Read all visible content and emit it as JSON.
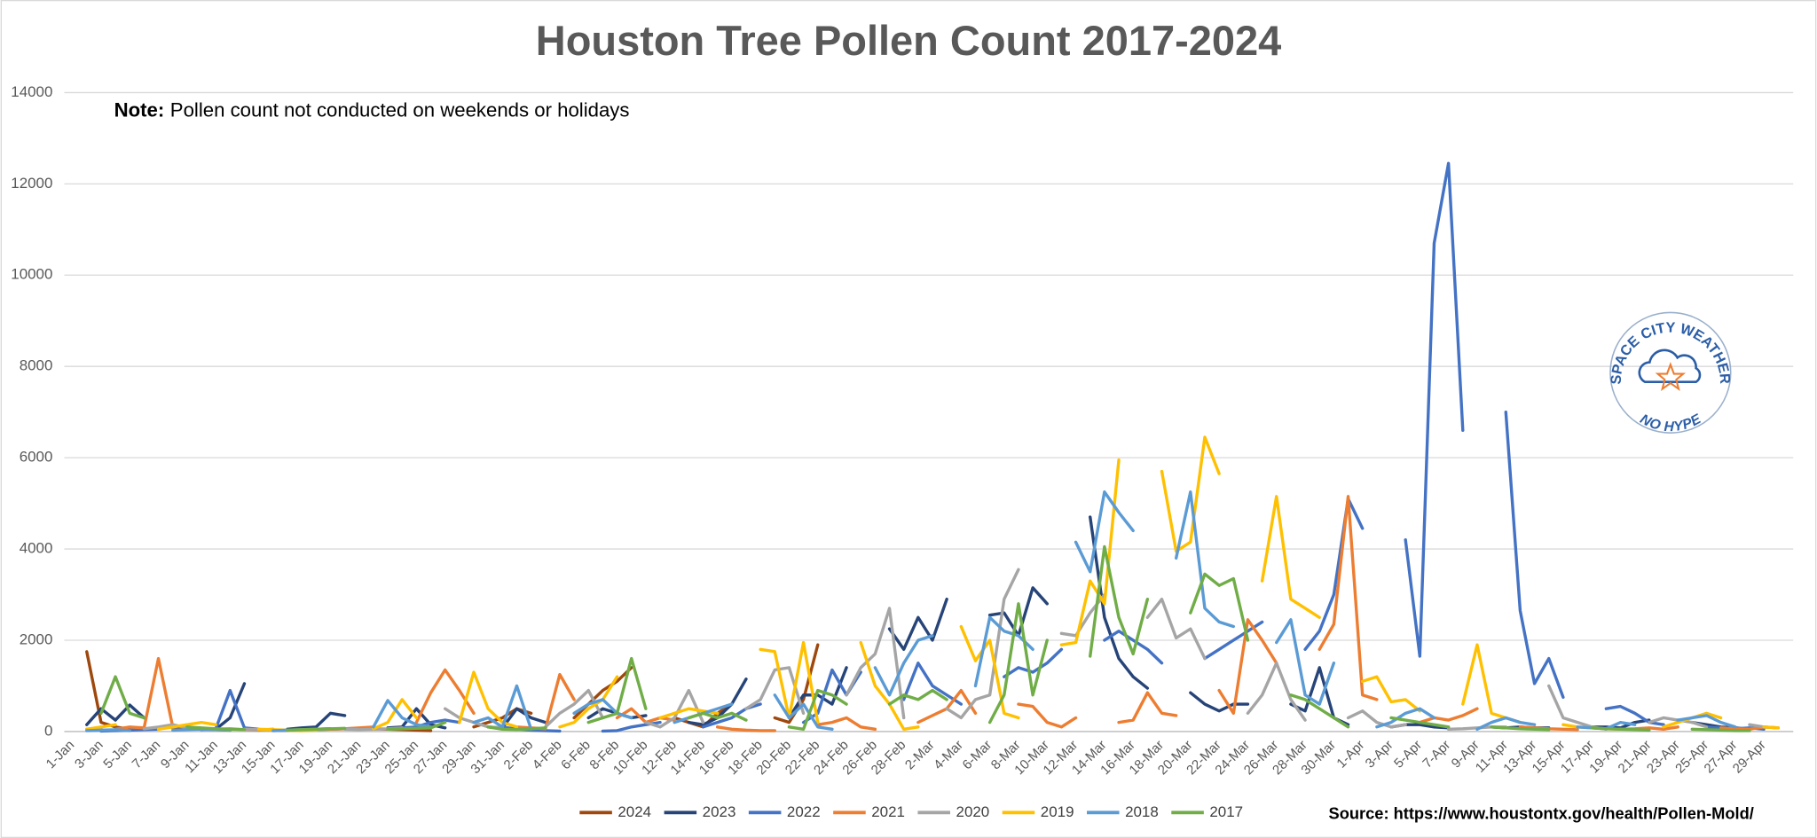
{
  "chart_data": {
    "type": "line",
    "title": "Houston Tree Pollen Count 2017-2024",
    "note": {
      "label": "Note:",
      "text": "Pollen count not conducted on weekends or holidays"
    },
    "source": "Source: https://www.houstontx.gov/health/Pollen-Mold/",
    "logo": {
      "top": "SPACE CITY WEATHER",
      "bottom": "NO HYPE"
    },
    "ylim": [
      0,
      14000
    ],
    "yticks": [
      0,
      2000,
      4000,
      6000,
      8000,
      10000,
      12000,
      14000
    ],
    "grid": true,
    "legend": "bottom",
    "categories": [
      "1-Jan",
      null,
      "3-Jan",
      null,
      "5-Jan",
      null,
      "7-Jan",
      null,
      "9-Jan",
      null,
      "11-Jan",
      null,
      "13-Jan",
      null,
      "15-Jan",
      null,
      "17-Jan",
      null,
      "19-Jan",
      null,
      "21-Jan",
      null,
      "23-Jan",
      null,
      "25-Jan",
      null,
      "27-Jan",
      null,
      "29-Jan",
      null,
      "31-Jan",
      null,
      "2-Feb",
      null,
      "4-Feb",
      null,
      "6-Feb",
      null,
      "8-Feb",
      null,
      "10-Feb",
      null,
      "12-Feb",
      null,
      "14-Feb",
      null,
      "16-Feb",
      null,
      "18-Feb",
      null,
      "20-Feb",
      null,
      "22-Feb",
      null,
      "24-Feb",
      null,
      "26-Feb",
      null,
      "28-Feb",
      null,
      "2-Mar",
      null,
      "4-Mar",
      null,
      "6-Mar",
      null,
      "8-Mar",
      null,
      "10-Mar",
      null,
      "12-Mar",
      null,
      "14-Mar",
      null,
      "16-Mar",
      null,
      "18-Mar",
      null,
      "20-Mar",
      null,
      "22-Mar",
      null,
      "24-Mar",
      null,
      "26-Mar",
      null,
      "28-Mar",
      null,
      "30-Mar",
      null,
      "1-Apr",
      null,
      "3-Apr",
      null,
      "5-Apr",
      null,
      "7-Apr",
      null,
      "9-Apr",
      null,
      "11-Apr",
      null,
      "13-Apr",
      null,
      "15-Apr",
      null,
      "17-Apr",
      null,
      "19-Apr",
      null,
      "21-Apr",
      null,
      "23-Apr",
      null,
      "25-Apr",
      null,
      "27-Apr",
      null,
      "29-Apr",
      null
    ],
    "series": [
      {
        "name": "2024",
        "color": "#9e480e",
        "values": [
          null,
          1750,
          200,
          100,
          50,
          null,
          null,
          80,
          60,
          50,
          40,
          30,
          null,
          null,
          20,
          30,
          40,
          50,
          60,
          null,
          null,
          60,
          50,
          40,
          30,
          20,
          null,
          null,
          100,
          200,
          300,
          500,
          400,
          null,
          null,
          300,
          600,
          900,
          1100,
          1400,
          null,
          null,
          300,
          200,
          100,
          400,
          600,
          null,
          null,
          300,
          200,
          700,
          1900,
          null,
          null,
          null,
          null,
          null,
          null,
          null,
          null,
          null,
          null,
          null,
          null,
          null,
          null,
          null,
          null,
          null,
          null,
          null,
          null,
          null,
          null,
          null,
          null,
          null,
          null,
          null,
          null,
          null,
          null,
          null,
          null,
          null,
          null,
          null,
          null,
          null,
          null,
          null,
          null,
          null,
          null,
          null,
          null,
          null,
          null,
          null,
          null,
          null,
          null,
          null,
          null,
          null,
          null,
          null,
          null,
          null,
          null,
          null,
          null,
          null,
          null,
          null,
          null,
          null,
          null,
          null
        ]
      },
      {
        "name": "2023",
        "color": "#264478",
        "values": [
          null,
          150,
          500,
          250,
          580,
          300,
          null,
          null,
          80,
          60,
          50,
          300,
          1050,
          null,
          null,
          50,
          80,
          100,
          400,
          350,
          null,
          null,
          80,
          100,
          500,
          150,
          80,
          null,
          null,
          100,
          80,
          500,
          300,
          200,
          null,
          null,
          300,
          500,
          400,
          300,
          350,
          null,
          null,
          200,
          150,
          300,
          600,
          1150,
          null,
          null,
          300,
          800,
          800,
          600,
          1400,
          null,
          null,
          2250,
          1800,
          2500,
          2000,
          2900,
          null,
          null,
          2550,
          2600,
          2100,
          3150,
          2800,
          null,
          null,
          4700,
          2500,
          1600,
          1200,
          950,
          null,
          null,
          850,
          600,
          450,
          600,
          600,
          null,
          null,
          600,
          450,
          1400,
          300,
          150,
          null,
          null,
          100,
          150,
          150,
          100,
          80,
          null,
          null,
          100,
          80,
          100,
          80,
          80,
          null,
          null,
          100,
          100,
          80,
          200,
          250,
          null,
          null,
          200,
          150,
          100,
          80,
          50,
          null,
          null
        ]
      },
      {
        "name": "2022",
        "color": "#4472c4",
        "values": [
          null,
          null,
          10,
          20,
          30,
          40,
          50,
          null,
          null,
          40,
          60,
          900,
          80,
          50,
          null,
          null,
          30,
          40,
          50,
          60,
          70,
          null,
          null,
          80,
          100,
          200,
          250,
          200,
          null,
          null,
          100,
          50,
          30,
          20,
          10,
          null,
          null,
          10,
          20,
          100,
          150,
          200,
          null,
          null,
          100,
          200,
          300,
          500,
          600,
          null,
          null,
          200,
          400,
          1350,
          800,
          1300,
          null,
          null,
          700,
          1500,
          1000,
          800,
          600,
          null,
          null,
          1200,
          1400,
          1300,
          1500,
          1800,
          null,
          null,
          2000,
          2200,
          2000,
          1800,
          1500,
          null,
          null,
          1600,
          1800,
          2000,
          2200,
          2400,
          null,
          null,
          1800,
          2200,
          3000,
          5100,
          4450,
          null,
          null,
          4200,
          1650,
          10700,
          12450,
          6600,
          null,
          null,
          7000,
          2650,
          1050,
          1600,
          750,
          null,
          null,
          500,
          550,
          400,
          200,
          150,
          null,
          null,
          100,
          80,
          60,
          80,
          50,
          null
        ]
      },
      {
        "name": "2021",
        "color": "#ed7d31",
        "values": [
          null,
          null,
          null,
          50,
          100,
          80,
          1600,
          100,
          null,
          null,
          50,
          60,
          40,
          30,
          50,
          null,
          null,
          40,
          50,
          60,
          80,
          100,
          null,
          null,
          200,
          850,
          1350,
          900,
          400,
          null,
          null,
          100,
          80,
          60,
          1250,
          700,
          null,
          null,
          300,
          500,
          200,
          300,
          250,
          null,
          null,
          100,
          50,
          30,
          20,
          20,
          null,
          null,
          150,
          200,
          300,
          100,
          50,
          null,
          null,
          200,
          350,
          500,
          900,
          400,
          null,
          null,
          600,
          550,
          200,
          100,
          300,
          null,
          null,
          200,
          250,
          850,
          400,
          350,
          null,
          null,
          900,
          400,
          2450,
          2000,
          1500,
          null,
          null,
          1800,
          2350,
          5150,
          800,
          700,
          null,
          null,
          200,
          300,
          250,
          350,
          500,
          null,
          null,
          100,
          80,
          60,
          50,
          40,
          null,
          null,
          50,
          60,
          80,
          50,
          100,
          null,
          null,
          80,
          60,
          50,
          100,
          80
        ]
      },
      {
        "name": "2020",
        "color": "#a5a5a5",
        "values": [
          null,
          50,
          80,
          null,
          null,
          60,
          100,
          150,
          80,
          60,
          null,
          null,
          50,
          40,
          30,
          30,
          20,
          null,
          null,
          50,
          40,
          50,
          60,
          80,
          null,
          null,
          500,
          300,
          200,
          100,
          80,
          null,
          null,
          100,
          400,
          600,
          900,
          300,
          null,
          null,
          200,
          100,
          300,
          900,
          200,
          null,
          null,
          500,
          700,
          1350,
          1400,
          400,
          null,
          null,
          800,
          1400,
          1700,
          2700,
          300,
          null,
          null,
          500,
          300,
          700,
          800,
          2900,
          3550,
          null,
          null,
          2150,
          2100,
          2600,
          3000,
          null,
          null,
          2500,
          2900,
          2050,
          2250,
          1600,
          null,
          null,
          400,
          800,
          1500,
          700,
          250,
          null,
          null,
          300,
          450,
          200,
          100,
          150,
          null,
          null,
          50,
          60,
          80,
          100,
          100,
          null,
          null,
          1000,
          300,
          200,
          100,
          50,
          null,
          null,
          200,
          300,
          250,
          200,
          100,
          null,
          null,
          150,
          100,
          80
        ]
      },
      {
        "name": "2019",
        "color": "#ffc000",
        "values": [
          null,
          50,
          100,
          150,
          null,
          null,
          50,
          100,
          150,
          200,
          150,
          null,
          null,
          50,
          40,
          30,
          20,
          30,
          null,
          null,
          null,
          60,
          200,
          700,
          300,
          null,
          null,
          200,
          1300,
          500,
          200,
          100,
          null,
          null,
          100,
          200,
          500,
          700,
          1200,
          null,
          null,
          300,
          400,
          500,
          450,
          400,
          null,
          null,
          1800,
          1750,
          300,
          1950,
          200,
          null,
          null,
          1950,
          1000,
          600,
          50,
          100,
          null,
          null,
          2300,
          1550,
          2000,
          400,
          300,
          null,
          null,
          1900,
          1950,
          3300,
          2800,
          5950,
          null,
          null,
          5700,
          3950,
          4150,
          6450,
          5650,
          null,
          null,
          3300,
          5150,
          2900,
          2700,
          2500,
          null,
          null,
          1100,
          1200,
          650,
          700,
          450,
          null,
          null,
          600,
          1900,
          400,
          300,
          200,
          null,
          null,
          150,
          100,
          80,
          60,
          50,
          null,
          null,
          100,
          200,
          300,
          400,
          300,
          null,
          null,
          100,
          80
        ]
      },
      {
        "name": "2018",
        "color": "#5b9bd5",
        "values": [
          null,
          20,
          30,
          40,
          20,
          null,
          null,
          30,
          40,
          50,
          40,
          30,
          null,
          null,
          20,
          30,
          40,
          50,
          60,
          null,
          null,
          100,
          680,
          300,
          150,
          100,
          null,
          null,
          200,
          300,
          100,
          1000,
          50,
          null,
          null,
          400,
          600,
          700,
          400,
          300,
          null,
          null,
          200,
          300,
          400,
          500,
          600,
          null,
          null,
          800,
          300,
          600,
          100,
          50,
          null,
          null,
          1400,
          800,
          1500,
          2000,
          2100,
          null,
          null,
          1000,
          2500,
          2200,
          2100,
          1800,
          null,
          null,
          4150,
          3500,
          5250,
          4800,
          4400,
          null,
          null,
          3800,
          5250,
          2700,
          2400,
          2300,
          null,
          null,
          1950,
          2450,
          800,
          600,
          1500,
          null,
          null,
          100,
          200,
          400,
          500,
          300,
          null,
          null,
          50,
          200,
          300,
          200,
          150,
          null,
          null,
          100,
          80,
          60,
          200,
          150,
          null,
          null,
          250,
          300,
          350,
          200,
          100,
          null,
          null,
          50
        ]
      },
      {
        "name": "2017",
        "color": "#70ad47",
        "values": [
          null,
          null,
          400,
          1200,
          400,
          300,
          null,
          null,
          100,
          80,
          60,
          50,
          40,
          null,
          null,
          30,
          40,
          50,
          60,
          70,
          null,
          null,
          50,
          60,
          70,
          80,
          200,
          null,
          null,
          100,
          50,
          40,
          60,
          80,
          null,
          null,
          200,
          300,
          400,
          1600,
          500,
          null,
          null,
          300,
          400,
          300,
          400,
          250,
          null,
          null,
          100,
          50,
          900,
          800,
          600,
          null,
          null,
          600,
          800,
          700,
          900,
          700,
          null,
          null,
          200,
          800,
          2800,
          800,
          2000,
          null,
          null,
          1650,
          4050,
          2500,
          1700,
          2900,
          null,
          null,
          2600,
          3450,
          3200,
          3350,
          2000,
          null,
          null,
          800,
          700,
          500,
          300,
          100,
          null,
          null,
          300,
          250,
          200,
          150,
          100,
          null,
          null,
          100,
          80,
          60,
          50,
          40,
          null,
          null,
          80,
          60,
          50,
          40,
          30,
          null,
          null,
          50,
          40,
          30,
          20,
          20,
          null,
          null
        ]
      }
    ]
  }
}
